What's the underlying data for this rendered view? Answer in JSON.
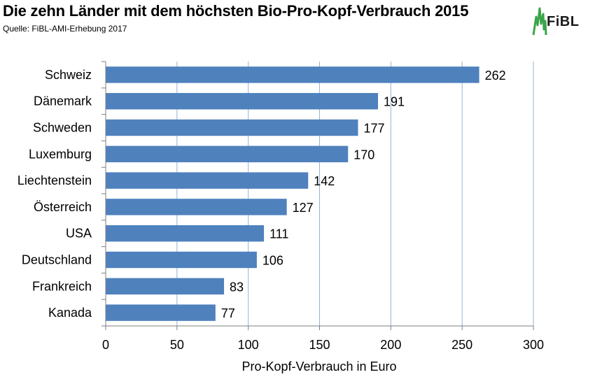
{
  "title": "Die zehn Länder mit dem höchsten Bio-Pro-Kopf-Verbrauch 2015",
  "source": "Quelle: FiBL-AMI-Erhebung 2017",
  "logo_text": "FiBL",
  "colors": {
    "bar": "#4f81bd",
    "grid": "#95b3d7",
    "axis": "#7f7f7f",
    "logo_green": "#3aa54a"
  },
  "chart_data": {
    "type": "bar",
    "orientation": "horizontal",
    "categories": [
      "Schweiz",
      "Dänemark",
      "Schweden",
      "Luxemburg",
      "Liechtenstein",
      "Österreich",
      "USA",
      "Deutschland",
      "Frankreich",
      "Kanada"
    ],
    "values": [
      262,
      191,
      177,
      170,
      142,
      127,
      111,
      106,
      83,
      77
    ],
    "xlabel": "Pro-Kopf-Verbrauch in Euro",
    "ylabel": "",
    "xlim": [
      0,
      300
    ],
    "xticks": [
      0,
      50,
      100,
      150,
      200,
      250,
      300
    ],
    "grid": true,
    "data_labels": true
  }
}
